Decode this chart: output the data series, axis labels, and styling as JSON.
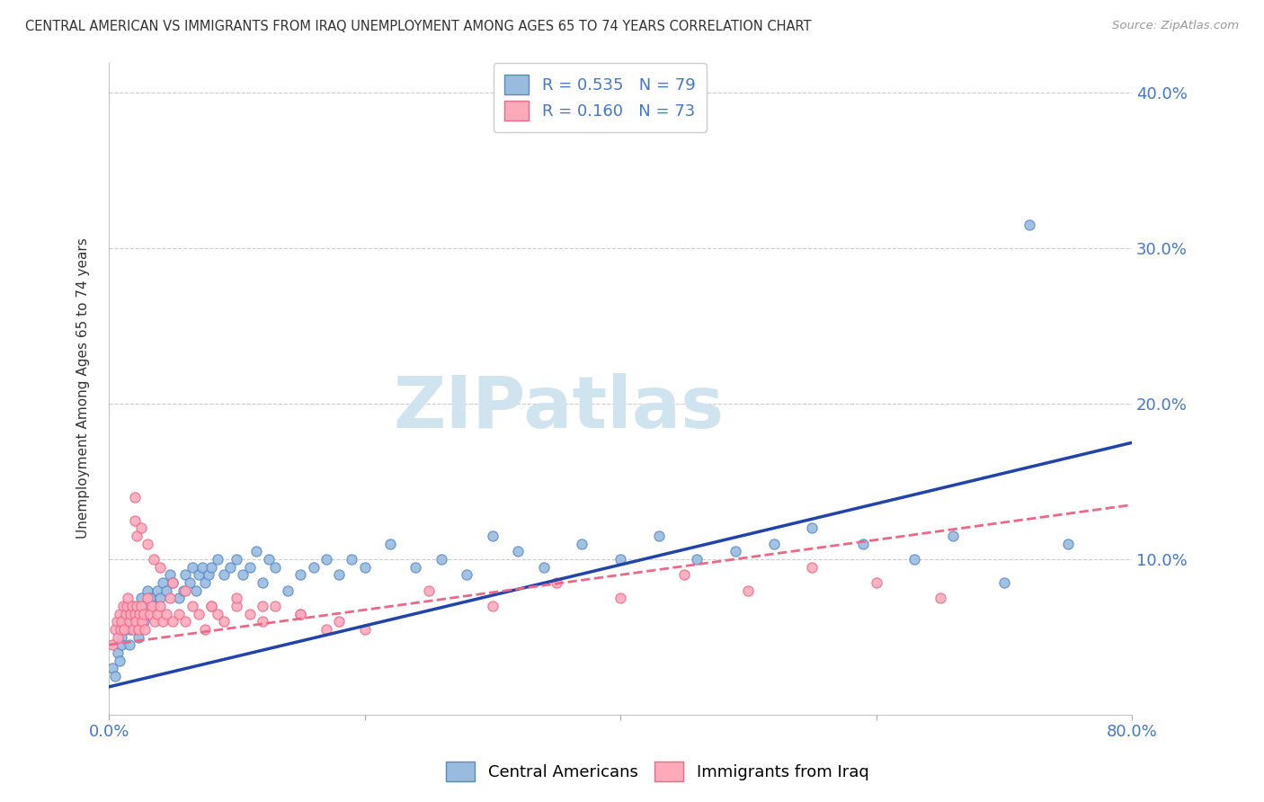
{
  "title": "CENTRAL AMERICAN VS IMMIGRANTS FROM IRAQ UNEMPLOYMENT AMONG AGES 65 TO 74 YEARS CORRELATION CHART",
  "source": "Source: ZipAtlas.com",
  "ylabel": "Unemployment Among Ages 65 to 74 years",
  "xlim": [
    0.0,
    0.8
  ],
  "ylim": [
    0.0,
    0.42
  ],
  "blue_color": "#99BBDD",
  "blue_edge_color": "#5588CC",
  "pink_color": "#FFAABB",
  "pink_edge_color": "#EE6688",
  "blue_line_color": "#2244AA",
  "pink_line_color": "#EE6688",
  "text_color": "#4477CC",
  "title_color": "#333333",
  "grid_color": "#CCCCCC",
  "watermark_color": "#D0E4F0",
  "marker_size": 65,
  "blue_line_x0": 0.0,
  "blue_line_y0": 0.018,
  "blue_line_x1": 0.8,
  "blue_line_y1": 0.175,
  "pink_line_x0": 0.0,
  "pink_line_y0": 0.045,
  "pink_line_x1": 0.8,
  "pink_line_y1": 0.135,
  "blue_x": [
    0.003,
    0.005,
    0.007,
    0.008,
    0.01,
    0.01,
    0.012,
    0.013,
    0.014,
    0.015,
    0.016,
    0.017,
    0.018,
    0.019,
    0.02,
    0.021,
    0.022,
    0.023,
    0.025,
    0.026,
    0.027,
    0.028,
    0.03,
    0.032,
    0.035,
    0.038,
    0.04,
    0.042,
    0.045,
    0.048,
    0.05,
    0.055,
    0.058,
    0.06,
    0.063,
    0.065,
    0.068,
    0.07,
    0.073,
    0.075,
    0.078,
    0.08,
    0.085,
    0.09,
    0.095,
    0.1,
    0.105,
    0.11,
    0.115,
    0.12,
    0.125,
    0.13,
    0.14,
    0.15,
    0.16,
    0.17,
    0.18,
    0.19,
    0.2,
    0.22,
    0.24,
    0.26,
    0.28,
    0.3,
    0.32,
    0.34,
    0.37,
    0.4,
    0.43,
    0.46,
    0.49,
    0.52,
    0.55,
    0.59,
    0.63,
    0.66,
    0.7,
    0.72,
    0.75
  ],
  "blue_y": [
    0.03,
    0.025,
    0.04,
    0.035,
    0.05,
    0.045,
    0.06,
    0.055,
    0.065,
    0.06,
    0.045,
    0.055,
    0.065,
    0.07,
    0.06,
    0.055,
    0.065,
    0.05,
    0.075,
    0.065,
    0.06,
    0.07,
    0.08,
    0.075,
    0.07,
    0.08,
    0.075,
    0.085,
    0.08,
    0.09,
    0.085,
    0.075,
    0.08,
    0.09,
    0.085,
    0.095,
    0.08,
    0.09,
    0.095,
    0.085,
    0.09,
    0.095,
    0.1,
    0.09,
    0.095,
    0.1,
    0.09,
    0.095,
    0.105,
    0.085,
    0.1,
    0.095,
    0.08,
    0.09,
    0.095,
    0.1,
    0.09,
    0.1,
    0.095,
    0.11,
    0.095,
    0.1,
    0.09,
    0.115,
    0.105,
    0.095,
    0.11,
    0.1,
    0.115,
    0.1,
    0.105,
    0.11,
    0.12,
    0.11,
    0.1,
    0.115,
    0.085,
    0.315,
    0.11
  ],
  "pink_x": [
    0.003,
    0.005,
    0.006,
    0.007,
    0.008,
    0.009,
    0.01,
    0.011,
    0.012,
    0.013,
    0.014,
    0.015,
    0.016,
    0.017,
    0.018,
    0.019,
    0.02,
    0.021,
    0.022,
    0.023,
    0.024,
    0.025,
    0.026,
    0.027,
    0.028,
    0.03,
    0.032,
    0.034,
    0.036,
    0.038,
    0.04,
    0.042,
    0.045,
    0.048,
    0.05,
    0.055,
    0.06,
    0.065,
    0.07,
    0.075,
    0.08,
    0.085,
    0.09,
    0.1,
    0.11,
    0.12,
    0.13,
    0.15,
    0.17,
    0.02,
    0.02,
    0.022,
    0.025,
    0.03,
    0.035,
    0.04,
    0.05,
    0.06,
    0.08,
    0.1,
    0.12,
    0.15,
    0.18,
    0.2,
    0.25,
    0.3,
    0.35,
    0.4,
    0.45,
    0.5,
    0.55,
    0.6,
    0.65
  ],
  "pink_y": [
    0.045,
    0.055,
    0.06,
    0.05,
    0.065,
    0.055,
    0.06,
    0.07,
    0.055,
    0.065,
    0.07,
    0.075,
    0.06,
    0.065,
    0.07,
    0.055,
    0.065,
    0.06,
    0.07,
    0.055,
    0.065,
    0.07,
    0.06,
    0.065,
    0.055,
    0.075,
    0.065,
    0.07,
    0.06,
    0.065,
    0.07,
    0.06,
    0.065,
    0.075,
    0.06,
    0.065,
    0.06,
    0.07,
    0.065,
    0.055,
    0.07,
    0.065,
    0.06,
    0.07,
    0.065,
    0.06,
    0.07,
    0.065,
    0.055,
    0.125,
    0.14,
    0.115,
    0.12,
    0.11,
    0.1,
    0.095,
    0.085,
    0.08,
    0.07,
    0.075,
    0.07,
    0.065,
    0.06,
    0.055,
    0.08,
    0.07,
    0.085,
    0.075,
    0.09,
    0.08,
    0.095,
    0.085,
    0.075
  ]
}
